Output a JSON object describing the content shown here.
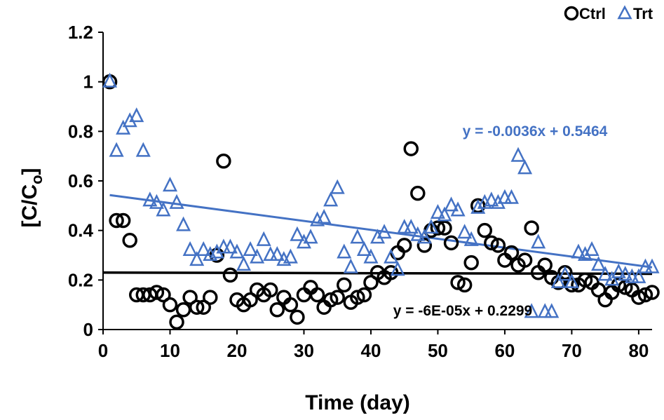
{
  "chart_data": {
    "type": "scatter",
    "xlabel": "Time (day)",
    "ylabel": "[C/Co]",
    "xlim": [
      0,
      82
    ],
    "ylim": [
      0,
      1.2
    ],
    "xticks": [
      0,
      10,
      20,
      30,
      40,
      50,
      60,
      70,
      80
    ],
    "yticks": [
      0,
      0.2,
      0.4,
      0.6,
      0.8,
      1,
      1.2
    ],
    "ytick_labels": [
      "0",
      "0.2",
      "0.4",
      "0.6",
      "0.8",
      "1",
      "1.2"
    ],
    "legend": {
      "position": "top-right"
    },
    "series": [
      {
        "name": "Ctrl",
        "marker": "circle",
        "color": "#000000",
        "x": [
          1,
          2,
          3,
          4,
          5,
          6,
          7,
          8,
          9,
          10,
          11,
          12,
          13,
          14,
          15,
          16,
          17,
          18,
          19,
          20,
          21,
          22,
          23,
          24,
          25,
          26,
          27,
          28,
          29,
          30,
          31,
          32,
          33,
          34,
          35,
          36,
          37,
          38,
          39,
          40,
          41,
          42,
          43,
          44,
          45,
          46,
          47,
          48,
          49,
          50,
          51,
          52,
          53,
          54,
          55,
          56,
          57,
          58,
          59,
          60,
          61,
          62,
          63,
          64,
          65,
          66,
          67,
          68,
          69,
          70,
          71,
          72,
          73,
          74,
          75,
          76,
          77,
          78,
          79,
          80,
          81,
          82
        ],
        "y": [
          1.0,
          0.44,
          0.44,
          0.36,
          0.14,
          0.14,
          0.14,
          0.15,
          0.14,
          0.1,
          0.03,
          0.08,
          0.13,
          0.09,
          0.09,
          0.13,
          0.3,
          0.68,
          0.22,
          0.12,
          0.1,
          0.12,
          0.16,
          0.14,
          0.16,
          0.08,
          0.13,
          0.1,
          0.05,
          0.14,
          0.17,
          0.14,
          0.09,
          0.12,
          0.13,
          0.18,
          0.11,
          0.13,
          0.14,
          0.19,
          0.23,
          0.21,
          0.23,
          0.31,
          0.34,
          0.73,
          0.55,
          0.34,
          0.4,
          0.41,
          0.41,
          0.35,
          0.19,
          0.18,
          0.27,
          0.5,
          0.4,
          0.35,
          0.34,
          0.28,
          0.31,
          0.26,
          0.28,
          0.41,
          0.23,
          0.26,
          0.21,
          0.19,
          0.23,
          0.18,
          0.18,
          0.2,
          0.19,
          0.16,
          0.12,
          0.15,
          0.18,
          0.17,
          0.16,
          0.13,
          0.14,
          0.15
        ]
      },
      {
        "name": "Trt",
        "marker": "triangle",
        "color": "#4472C4",
        "x": [
          1,
          2,
          3,
          4,
          5,
          6,
          7,
          8,
          9,
          10,
          11,
          12,
          13,
          14,
          15,
          16,
          17,
          18,
          19,
          20,
          21,
          22,
          23,
          24,
          25,
          26,
          27,
          28,
          29,
          30,
          31,
          32,
          33,
          34,
          35,
          36,
          37,
          38,
          39,
          40,
          41,
          42,
          43,
          44,
          45,
          46,
          47,
          48,
          49,
          50,
          51,
          52,
          53,
          54,
          55,
          56,
          57,
          58,
          59,
          60,
          61,
          62,
          63,
          64,
          65,
          66,
          67,
          68,
          69,
          70,
          71,
          72,
          73,
          74,
          75,
          76,
          77,
          78,
          79,
          80,
          81,
          82
        ],
        "y": [
          1.0,
          0.72,
          0.81,
          0.84,
          0.86,
          0.72,
          0.52,
          0.51,
          0.48,
          0.58,
          0.51,
          0.42,
          0.32,
          0.28,
          0.32,
          0.3,
          0.31,
          0.33,
          0.33,
          0.31,
          0.26,
          0.32,
          0.29,
          0.36,
          0.3,
          0.3,
          0.28,
          0.29,
          0.38,
          0.35,
          0.37,
          0.44,
          0.45,
          0.52,
          0.57,
          0.31,
          0.25,
          0.37,
          0.32,
          0.29,
          0.37,
          0.39,
          0.29,
          0.24,
          0.41,
          0.41,
          0.38,
          0.37,
          0.41,
          0.47,
          0.46,
          0.5,
          0.48,
          0.39,
          0.36,
          0.49,
          0.51,
          0.52,
          0.51,
          0.53,
          0.53,
          0.7,
          0.65,
          0.07,
          0.35,
          0.07,
          0.07,
          0.19,
          0.22,
          0.19,
          0.31,
          0.3,
          0.32,
          0.26,
          0.22,
          0.2,
          0.23,
          0.22,
          0.21,
          0.21,
          0.25,
          0.25
        ]
      }
    ],
    "trendlines": [
      {
        "series": "Trt",
        "slope": -0.0036,
        "intercept": 0.5464,
        "label": "y = -0.0036x + 0.5464",
        "color": "#4472C4"
      },
      {
        "series": "Ctrl",
        "slope": -6e-05,
        "intercept": 0.2299,
        "label": "y = -6E-05x + 0.2299",
        "color": "#000000"
      }
    ]
  }
}
